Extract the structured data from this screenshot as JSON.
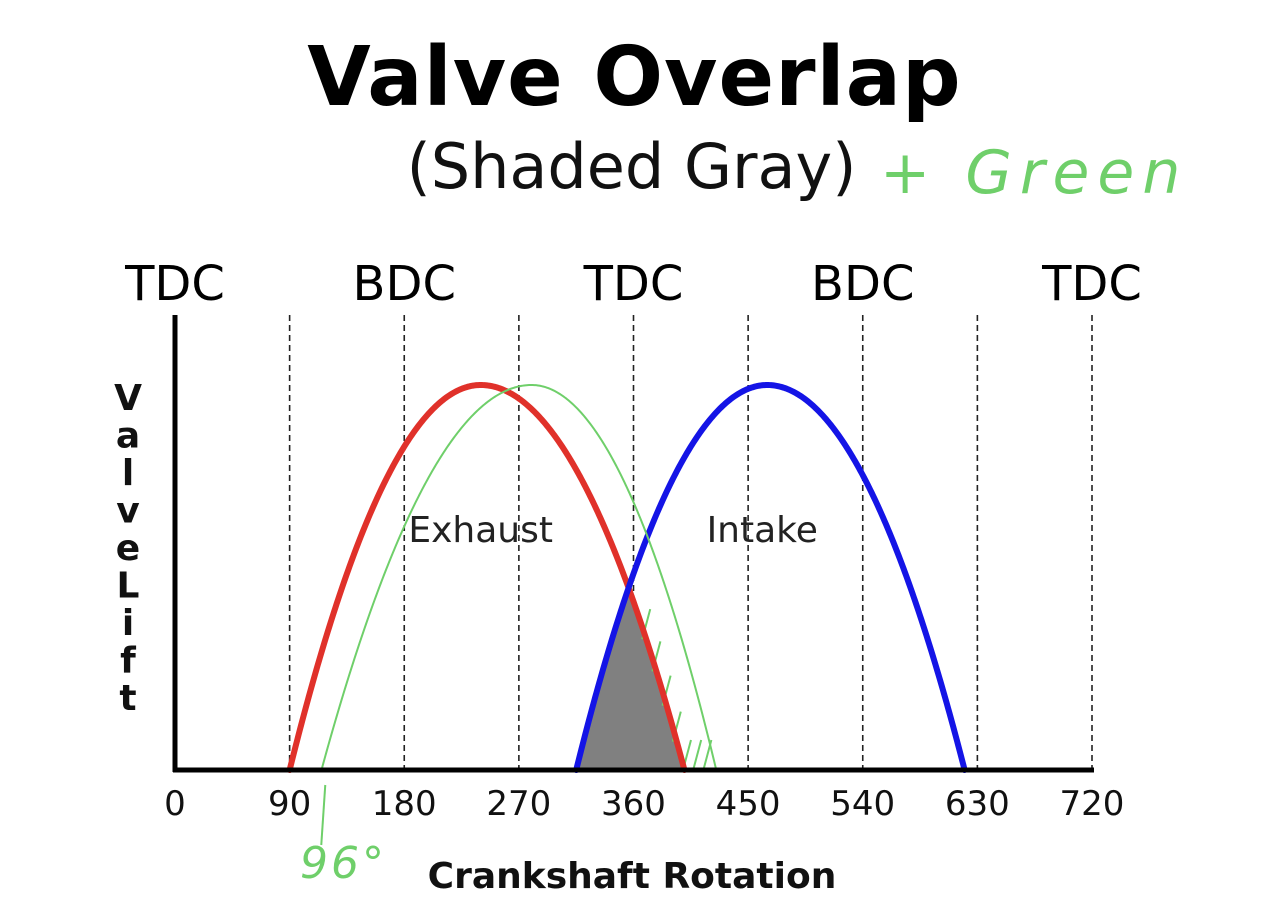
{
  "chart_data": {
    "type": "line",
    "title": "Valve Overlap",
    "subtitle": "(Shaded Gray)",
    "handwritten_note": "+ Green",
    "handwritten_x_marker": {
      "label": "96°",
      "x": 96
    },
    "xlabel": "Crankshaft Rotation",
    "ylabel": "Valve Lift",
    "xlim": [
      0,
      720
    ],
    "x_ticks": [
      0,
      90,
      180,
      270,
      360,
      450,
      540,
      630,
      720
    ],
    "dashed_gridlines_x": [
      90,
      180,
      270,
      360,
      450,
      540,
      630,
      720
    ],
    "stroke_labels": [
      {
        "label": "TDC",
        "x": 0
      },
      {
        "label": "BDC",
        "x": 180
      },
      {
        "label": "TDC",
        "x": 360
      },
      {
        "label": "BDC",
        "x": 540
      },
      {
        "label": "TDC",
        "x": 720
      }
    ],
    "series": [
      {
        "name": "Exhaust",
        "color": "#e0312a",
        "open": 90,
        "close": 400,
        "peak_x": 240,
        "peak_lift": 1.0
      },
      {
        "name": "Intake",
        "color": "#1414e6",
        "open": 315,
        "close": 620,
        "peak_x": 465,
        "peak_lift": 1.0
      },
      {
        "name": "",
        "color": "#6fcf6a",
        "open": 115,
        "close": 425,
        "peak_x": 280,
        "peak_lift": 1.0
      }
    ],
    "overlap_fill": {
      "color": "#808080",
      "from": 315,
      "to": 400
    },
    "grid": false
  }
}
